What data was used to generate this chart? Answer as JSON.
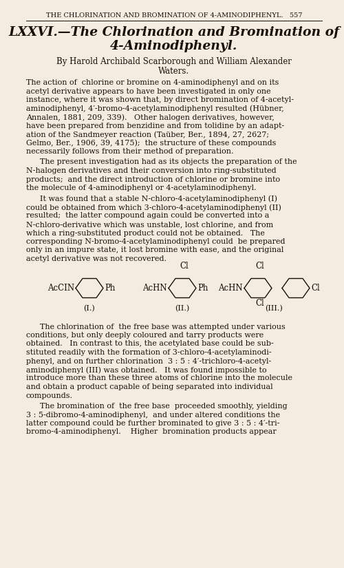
{
  "page_header": "THE CHLORINATION AND BROMINATION OF 4-AMINODIPHENYL.   557",
  "title_line1": "LXXVI.—The Chlorination and Bromination of",
  "title_line2": "4-Aminodiphenyl.",
  "byline1": "By Harold Archibald Scarborough and William Alexander",
  "byline2": "Waters.",
  "para0": "The action of  chlorine or bromine on 4-aminodiphenyl and on its\nacetyl derivative appears to have been investigated in only one\ninstance, where it was shown that, by direct bromination of 4-acetyl-\naminodiphenyl, 4′-bromo-4-acetylaminodiphenyl resulted (Hübner,\nAnnalen, 1881, 209, 339).   Other halogen derivatives, however,\nhave been prepared from benzidine and from tolidine by an adapt-\nation of the Sandmeyer reaction (Taüber, Ber., 1894, 27, 2627;\nGelmo, Ber., 1906, 39, 4175);  the structure of these compounds\nnecessarily follows from their method of preparation.",
  "para1": "The present investigation had as its objects the preparation of the\nN-halogen derivatives and their conversion into ring-substituted\nproducts;  and the direct introduction of chlorine or bromine into\nthe molecule of 4-aminodiphenyl or 4-acetylaminodiphenyl.",
  "para2": "It was found that a stable N-chloro-4-acetylaminodiphenyl (I)\ncould be obtained from which 3-chloro-4-acetylaminodiphenyl (II)\nresulted;  the latter compound again could be converted into a\nN-chloro-derivative which was unstable, lost chlorine, and from\nwhich a ring-substituted product could not be obtained.   The\ncorresponding N-bromo-4-acetylaminodiphenyl could  be prepared\nonly in an impure state, it lost bromine with ease, and the original\nacetyl derivative was not recovered.",
  "para3": "The chlorination of  the free base was attempted under various\nconditions, but only deeply coloured and tarry products were\nobtained.   In contrast to this, the acetylated base could be sub-\nstituted readily with the formation of 3-chloro-4-acetylaminodi-\nphenyl, and on further chlorination  3 : 5 : 4′-trichloro-4-acetyl-\naminodiphenyl (III) was obtained.   It was found impossible to\nintroduce more than these three atoms of chlorine into the molecule\nand obtain a product capable of being separated into individual\ncompounds.",
  "para4": "The bromination of  the free base  proceeded smoothly, yielding\n3 : 5-dibromo-4-aminodiphenyl,  and under altered conditions the\nlatter compound could be further brominated to give 3 : 5 : 4′-tri-\nbromo-4-aminodiphenyl.    Higher  bromination products appear",
  "background_color": "#f2ede0",
  "text_color": "#1a1008",
  "figsize": [
    5.0,
    8.25
  ],
  "dpi": 100
}
